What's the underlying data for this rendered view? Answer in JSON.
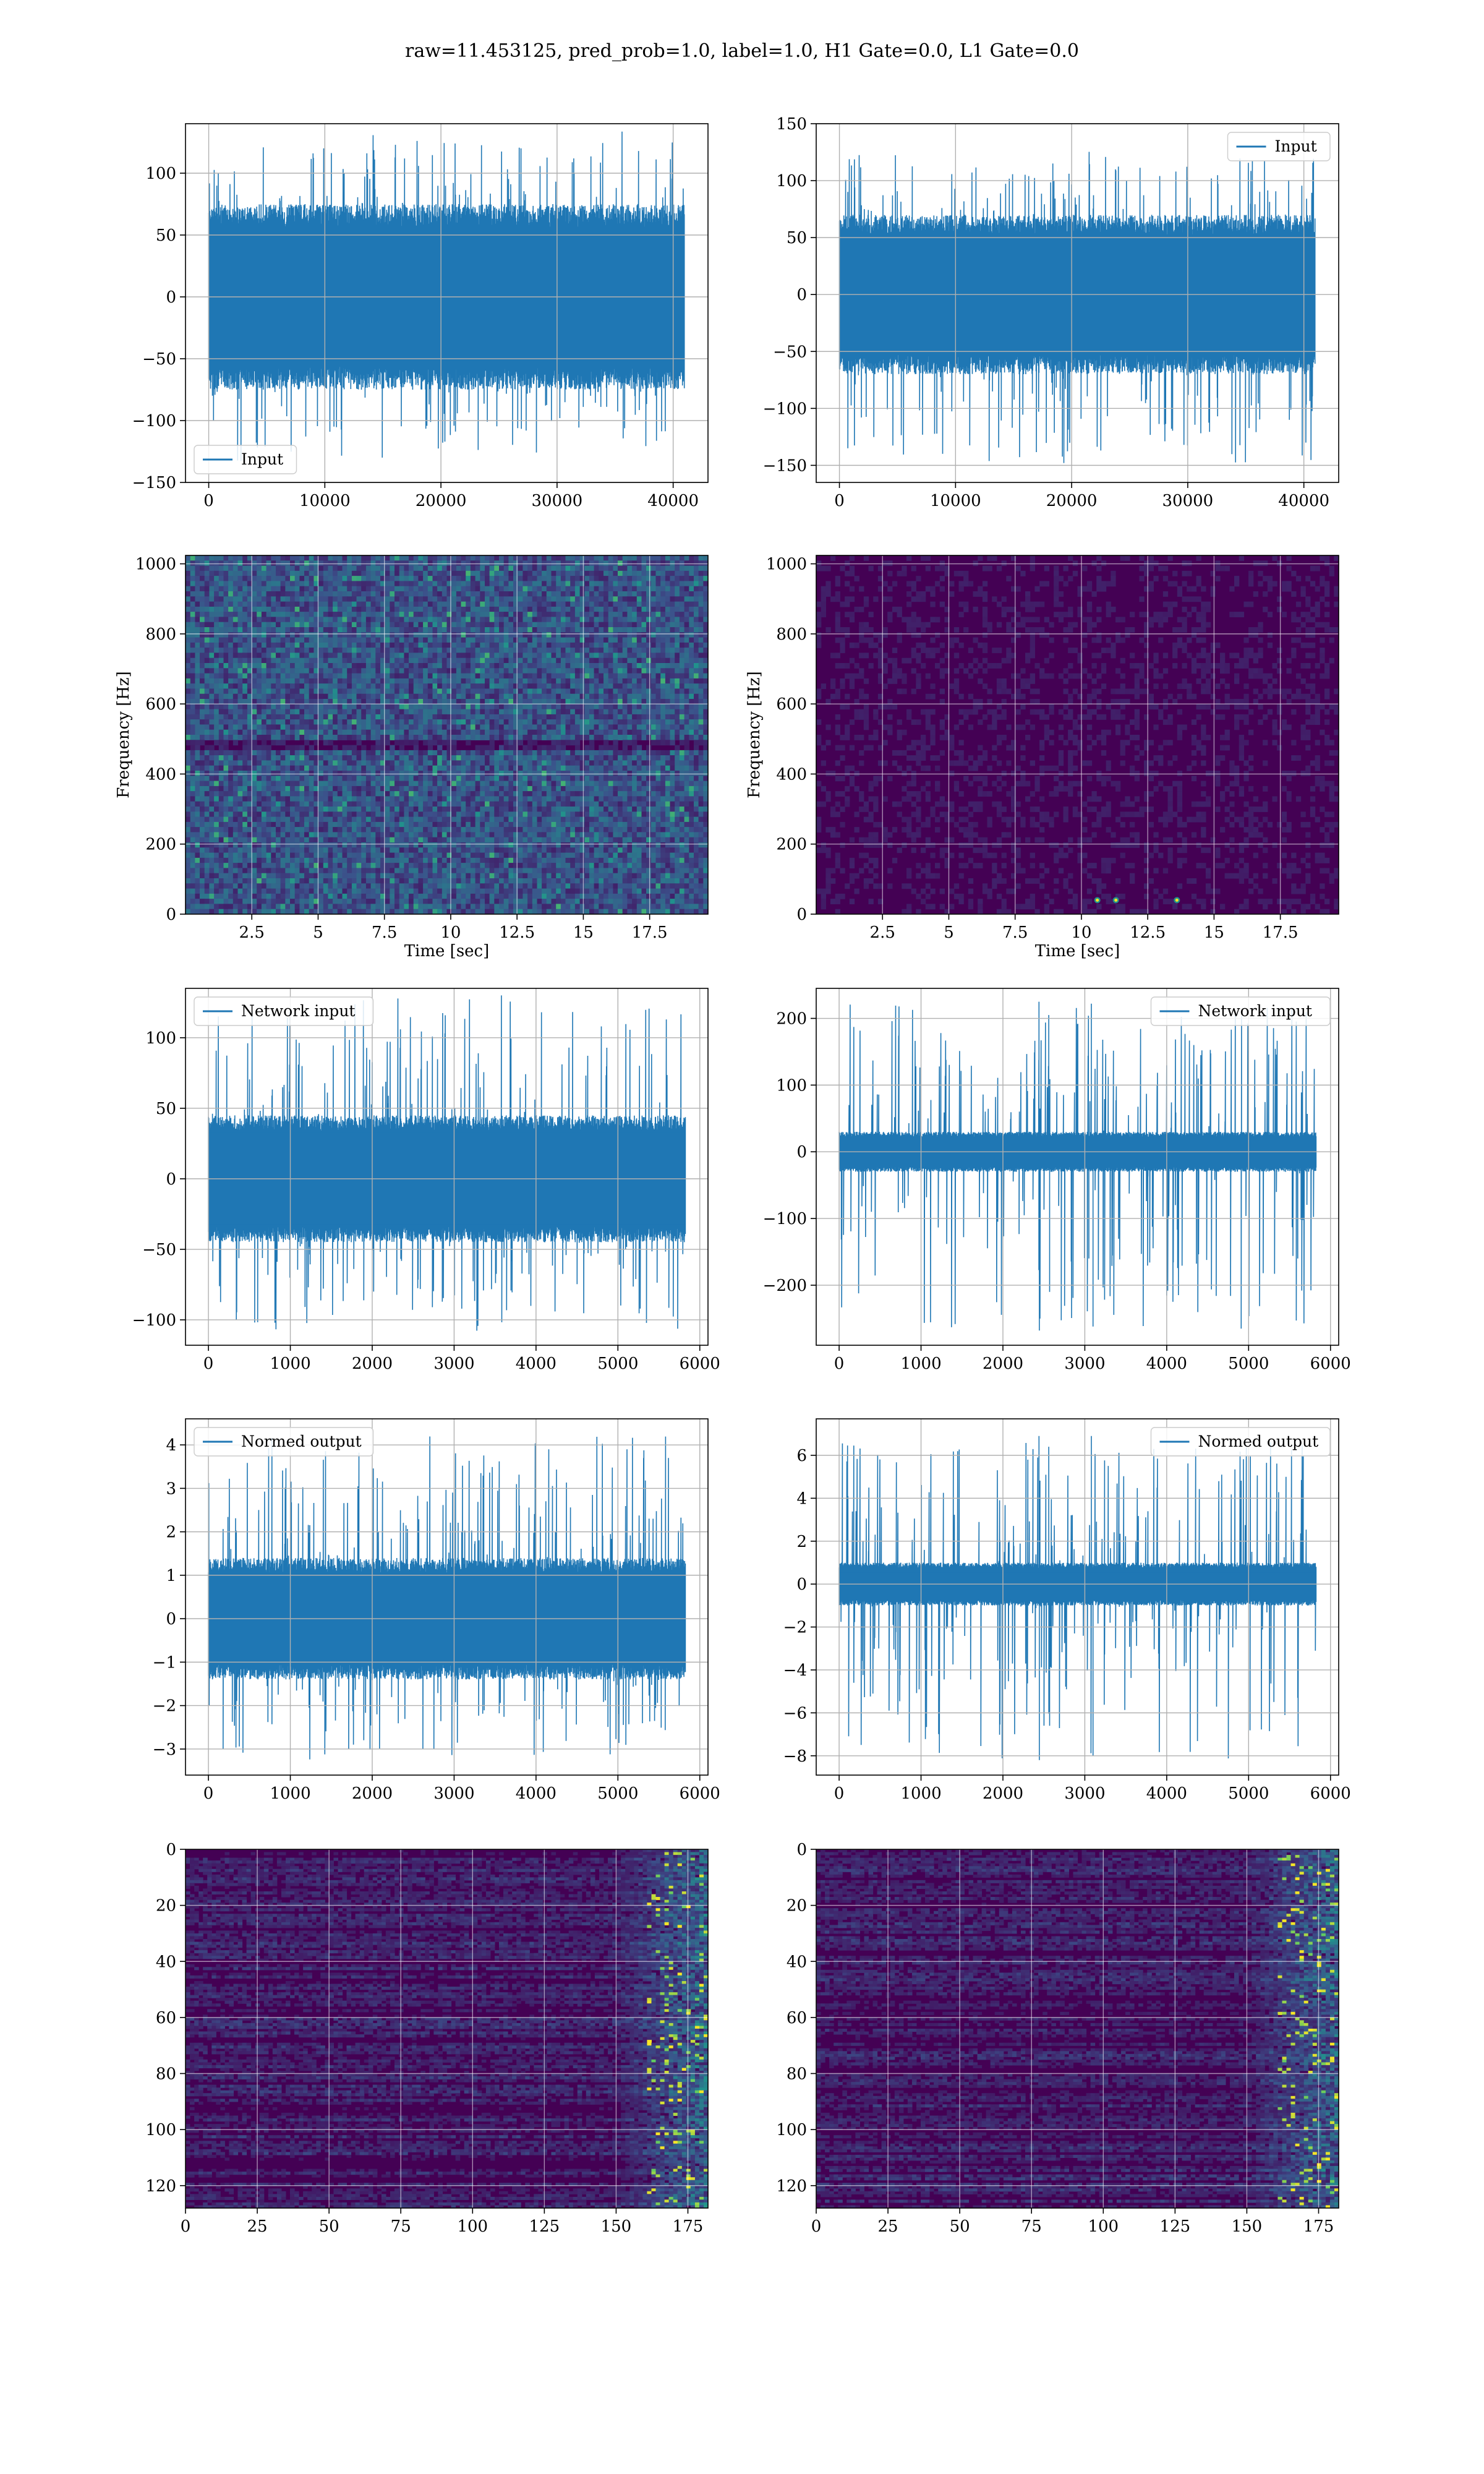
{
  "figure": {
    "title": "raw=11.453125, pred_prob=1.0, label=1.0, H1 Gate=0.0, L1 Gate=0.0"
  },
  "colors": {
    "line": "#1f77b4",
    "grid": "#b0b0b0",
    "viridis_low": "#440154",
    "viridis_mid": "#3b528b",
    "viridis_high": "#21918c",
    "viridis_peak": "#fde725"
  },
  "chart_data": [
    {
      "id": "r0c0",
      "type": "line",
      "row": 0,
      "col": 0,
      "style": "dense",
      "title": "",
      "xlabel": "",
      "ylabel": "",
      "xlim": [
        -2000,
        43000
      ],
      "ylim": [
        -150,
        140
      ],
      "x_ticks": [
        0,
        10000,
        20000,
        30000,
        40000
      ],
      "y_ticks": [
        -150,
        -100,
        -50,
        0,
        50,
        100
      ],
      "legend": {
        "label": "Input",
        "position": "bottom-left"
      },
      "grid": true,
      "series": [
        {
          "name": "Input",
          "x_range": [
            0,
            40960
          ],
          "band": [
            -75,
            75
          ],
          "extremes": [
            -135,
            135
          ]
        }
      ]
    },
    {
      "id": "r0c1",
      "type": "line",
      "row": 0,
      "col": 1,
      "style": "dense",
      "title": "",
      "xlabel": "",
      "ylabel": "",
      "xlim": [
        -2000,
        43000
      ],
      "ylim": [
        -165,
        150
      ],
      "x_ticks": [
        0,
        10000,
        20000,
        30000,
        40000
      ],
      "y_ticks": [
        -150,
        -100,
        -50,
        0,
        50,
        100,
        150
      ],
      "legend": {
        "label": "Input",
        "position": "top-right"
      },
      "grid": true,
      "series": [
        {
          "name": "Input",
          "x_range": [
            0,
            40960
          ],
          "band": [
            -70,
            70
          ],
          "extremes": [
            -158,
            130
          ]
        }
      ]
    },
    {
      "id": "r1c0",
      "type": "heatmap",
      "row": 1,
      "col": 0,
      "style": "spectrogram-busy",
      "title": "",
      "xlabel": "Time [sec]",
      "ylabel": "Frequency [Hz]",
      "xlim": [
        0,
        19.7
      ],
      "ylim": [
        0,
        1024
      ],
      "x_ticks": [
        2.5,
        5.0,
        7.5,
        10.0,
        12.5,
        15.0,
        17.5
      ],
      "y_ticks": [
        0,
        200,
        400,
        600,
        800,
        1000
      ],
      "grid": true
    },
    {
      "id": "r1c1",
      "type": "heatmap",
      "row": 1,
      "col": 1,
      "style": "spectrogram-quiet",
      "title": "",
      "xlabel": "Time [sec]",
      "ylabel": "Frequency [Hz]",
      "xlim": [
        0,
        19.7
      ],
      "ylim": [
        0,
        1024
      ],
      "x_ticks": [
        2.5,
        5.0,
        7.5,
        10.0,
        12.5,
        15.0,
        17.5
      ],
      "y_ticks": [
        0,
        200,
        400,
        600,
        800,
        1000
      ],
      "grid": true,
      "hotspots": [
        [
          10.6,
          40
        ],
        [
          11.3,
          40
        ],
        [
          13.6,
          40
        ]
      ]
    },
    {
      "id": "r2c0",
      "type": "line",
      "row": 2,
      "col": 0,
      "style": "dense",
      "title": "",
      "xlabel": "",
      "ylabel": "",
      "xlim": [
        -280,
        6100
      ],
      "ylim": [
        -118,
        135
      ],
      "x_ticks": [
        0,
        1000,
        2000,
        3000,
        4000,
        5000,
        6000
      ],
      "y_ticks": [
        -100,
        -50,
        0,
        50,
        100
      ],
      "legend": {
        "label": "Network input",
        "position": "top-left"
      },
      "grid": true,
      "series": [
        {
          "name": "Network input",
          "x_range": [
            0,
            5824
          ],
          "band": [
            -45,
            45
          ],
          "extremes": [
            -112,
            132
          ]
        }
      ]
    },
    {
      "id": "r2c1",
      "type": "line",
      "row": 2,
      "col": 1,
      "style": "spiky",
      "title": "",
      "xlabel": "",
      "ylabel": "",
      "xlim": [
        -280,
        6100
      ],
      "ylim": [
        -290,
        245
      ],
      "x_ticks": [
        0,
        1000,
        2000,
        3000,
        4000,
        5000,
        6000
      ],
      "y_ticks": [
        -200,
        -100,
        0,
        100,
        200
      ],
      "legend": {
        "label": "Network input",
        "position": "top-right"
      },
      "grid": true,
      "series": [
        {
          "name": "Network input",
          "x_range": [
            0,
            5824
          ],
          "band": [
            -30,
            30
          ],
          "extremes": [
            -268,
            225
          ],
          "spikes": [
            [
              2440,
              225
            ],
            [
              2445,
              -268
            ],
            [
              2560,
              205
            ],
            [
              2570,
              -210
            ],
            [
              3080,
              222
            ],
            [
              3100,
              -262
            ],
            [
              3050,
              -160
            ],
            [
              5600,
              -160
            ]
          ]
        }
      ]
    },
    {
      "id": "r3c0",
      "type": "line",
      "row": 3,
      "col": 0,
      "style": "dense",
      "title": "",
      "xlabel": "",
      "ylabel": "",
      "xlim": [
        -280,
        6100
      ],
      "ylim": [
        -3.6,
        4.6
      ],
      "x_ticks": [
        0,
        1000,
        2000,
        3000,
        4000,
        5000,
        6000
      ],
      "y_ticks": [
        -3,
        -2,
        -1,
        0,
        1,
        2,
        3,
        4
      ],
      "legend": {
        "label": "Normed output",
        "position": "top-left"
      },
      "grid": true,
      "series": [
        {
          "name": "Normed output",
          "x_range": [
            0,
            5824
          ],
          "band": [
            -1.4,
            1.4
          ],
          "extremes": [
            -3.3,
            4.3
          ]
        }
      ]
    },
    {
      "id": "r3c1",
      "type": "line",
      "row": 3,
      "col": 1,
      "style": "spiky",
      "title": "",
      "xlabel": "",
      "ylabel": "",
      "xlim": [
        -280,
        6100
      ],
      "ylim": [
        -8.9,
        7.7
      ],
      "x_ticks": [
        0,
        1000,
        2000,
        3000,
        4000,
        5000,
        6000
      ],
      "y_ticks": [
        -8,
        -6,
        -4,
        -2,
        0,
        2,
        4,
        6
      ],
      "legend": {
        "label": "Normed output",
        "position": "top-right"
      },
      "grid": true,
      "series": [
        {
          "name": "Normed output",
          "x_range": [
            0,
            5824
          ],
          "band": [
            -1.0,
            1.0
          ],
          "extremes": [
            -8.2,
            6.9
          ],
          "spikes": [
            [
              2440,
              6.9
            ],
            [
              2445,
              -8.2
            ],
            [
              2560,
              6.4
            ],
            [
              2570,
              -6.6
            ],
            [
              3080,
              6.9
            ],
            [
              3100,
              -8.0
            ],
            [
              5600,
              -5.3
            ]
          ]
        }
      ]
    },
    {
      "id": "r4c0",
      "type": "heatmap",
      "row": 4,
      "col": 0,
      "style": "feature-map",
      "title": "",
      "xlabel": "",
      "ylabel": "",
      "xlim": [
        0,
        182
      ],
      "ylim": [
        128,
        0
      ],
      "x_ticks": [
        0,
        25,
        50,
        75,
        100,
        125,
        150,
        175
      ],
      "y_ticks": [
        0,
        20,
        40,
        60,
        80,
        100,
        120
      ],
      "grid": true
    },
    {
      "id": "r4c1",
      "type": "heatmap",
      "row": 4,
      "col": 1,
      "style": "feature-map",
      "title": "",
      "xlabel": "",
      "ylabel": "",
      "xlim": [
        0,
        182
      ],
      "ylim": [
        128,
        0
      ],
      "x_ticks": [
        0,
        25,
        50,
        75,
        100,
        125,
        150,
        175
      ],
      "y_ticks": [
        0,
        20,
        40,
        60,
        80,
        100,
        120
      ],
      "grid": true
    }
  ]
}
